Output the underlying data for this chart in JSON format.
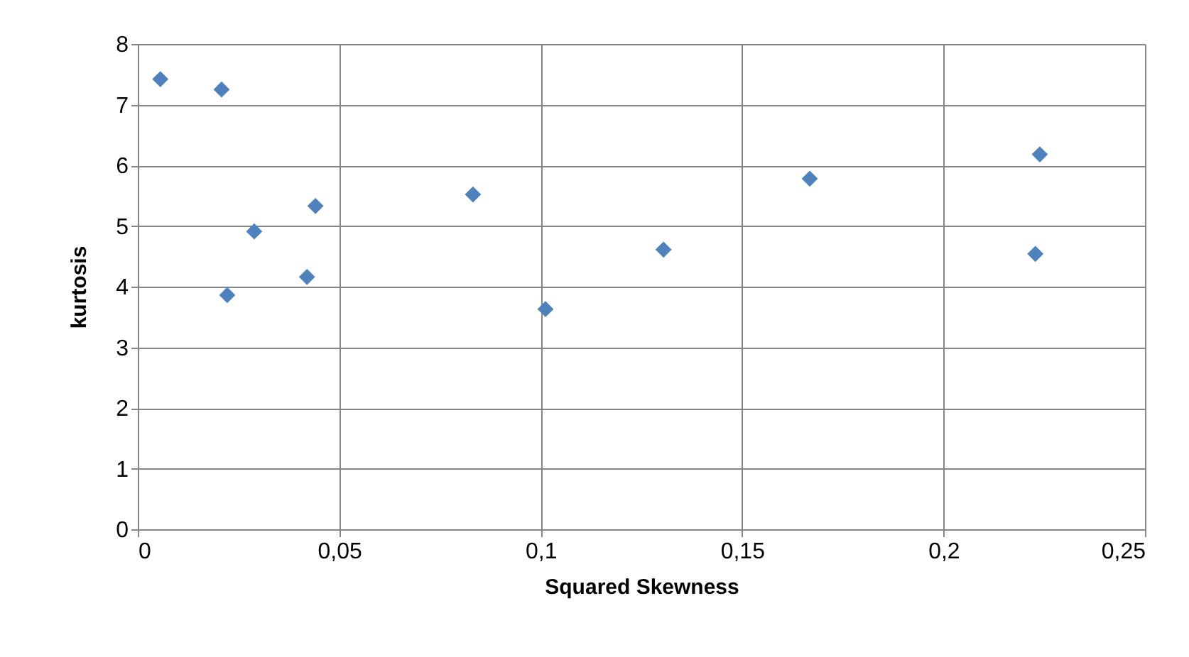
{
  "chart_data": {
    "type": "scatter",
    "xlabel": "Squared Skewness",
    "ylabel": "kurtosis",
    "x": [
      0.0056,
      0.0208,
      0.0289,
      0.0441,
      0.0222,
      0.042,
      0.0832,
      0.1012,
      0.1305,
      0.1668,
      0.2239,
      0.2228
    ],
    "values": [
      7.42,
      7.25,
      4.91,
      5.33,
      3.86,
      4.16,
      5.52,
      3.63,
      4.61,
      5.78,
      6.18,
      4.54
    ],
    "color": "#4f81bd",
    "marker": "diamond",
    "grid": true,
    "xlim": [
      0,
      0.25
    ],
    "xticks": [
      {
        "value": 0,
        "label": "0"
      },
      {
        "value": 0.05,
        "label": "0,05"
      },
      {
        "value": 0.1,
        "label": "0,1"
      },
      {
        "value": 0.15,
        "label": "0,15"
      },
      {
        "value": 0.2,
        "label": "0,2"
      },
      {
        "value": 0.25,
        "label": "0,25"
      }
    ],
    "ylim": [
      0,
      8
    ],
    "yticks": [
      0,
      1,
      2,
      3,
      4,
      5,
      6,
      7,
      8
    ]
  }
}
